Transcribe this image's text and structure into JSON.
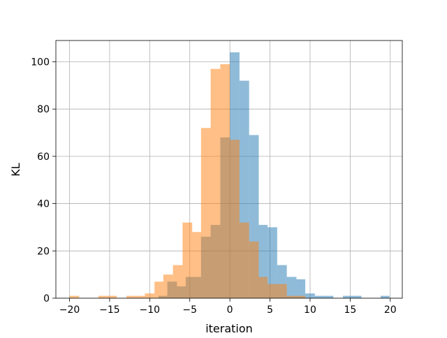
{
  "chart_data": {
    "type": "bar",
    "subtype": "overlapping-histogram",
    "title": "",
    "xlabel": "iteration",
    "ylabel": "KL",
    "xlim": [
      -21.7,
      21.5
    ],
    "ylim": [
      0,
      109
    ],
    "grid": true,
    "xticks": [
      -20,
      -15,
      -10,
      -5,
      0,
      5,
      10,
      15,
      20
    ],
    "xtick_labels": [
      "−20",
      "−15",
      "−10",
      "−5",
      "0",
      "5",
      "10",
      "15",
      "20"
    ],
    "yticks": [
      0,
      20,
      40,
      60,
      80,
      100
    ],
    "ytick_labels": [
      "0",
      "20",
      "40",
      "60",
      "80",
      "100"
    ],
    "series": [
      {
        "color": "#1f77b4",
        "opacity": 0.5,
        "bins": [
          {
            "x0": -10.0,
            "x1": -8.9,
            "count": 0
          },
          {
            "x0": -8.9,
            "x1": -7.8,
            "count": 1
          },
          {
            "x0": -7.8,
            "x1": -6.6,
            "count": 7
          },
          {
            "x0": -6.6,
            "x1": -5.5,
            "count": 5
          },
          {
            "x0": -5.5,
            "x1": -3.6,
            "count": 9
          },
          {
            "x0": -3.6,
            "x1": -2.4,
            "count": 26
          },
          {
            "x0": -2.4,
            "x1": -1.2,
            "count": 31
          },
          {
            "x0": -1.2,
            "x1": 0.0,
            "count": 68
          },
          {
            "x0": 0.0,
            "x1": 1.2,
            "count": 104
          },
          {
            "x0": 1.2,
            "x1": 2.4,
            "count": 92
          },
          {
            "x0": 2.4,
            "x1": 3.6,
            "count": 69
          },
          {
            "x0": 3.6,
            "x1": 4.7,
            "count": 31
          },
          {
            "x0": 4.7,
            "x1": 5.9,
            "count": 30
          },
          {
            "x0": 5.9,
            "x1": 7.1,
            "count": 14
          },
          {
            "x0": 7.1,
            "x1": 8.3,
            "count": 9
          },
          {
            "x0": 8.3,
            "x1": 9.4,
            "count": 8
          },
          {
            "x0": 9.4,
            "x1": 10.6,
            "count": 2
          },
          {
            "x0": 10.6,
            "x1": 12.9,
            "count": 1
          },
          {
            "x0": 12.9,
            "x1": 14.1,
            "count": 0
          },
          {
            "x0": 14.1,
            "x1": 16.4,
            "count": 1
          },
          {
            "x0": 16.4,
            "x1": 18.8,
            "count": 0
          },
          {
            "x0": 18.8,
            "x1": 19.9,
            "count": 1
          }
        ]
      },
      {
        "color": "#ff7f0e",
        "opacity": 0.5,
        "bins": [
          {
            "x0": -20.0,
            "x1": -18.8,
            "count": 1
          },
          {
            "x0": -18.8,
            "x1": -16.4,
            "count": 0
          },
          {
            "x0": -16.4,
            "x1": -14.1,
            "count": 1
          },
          {
            "x0": -14.1,
            "x1": -12.9,
            "count": 0
          },
          {
            "x0": -12.9,
            "x1": -10.6,
            "count": 1
          },
          {
            "x0": -10.6,
            "x1": -9.4,
            "count": 2
          },
          {
            "x0": -9.4,
            "x1": -8.3,
            "count": 7
          },
          {
            "x0": -8.3,
            "x1": -7.1,
            "count": 10
          },
          {
            "x0": -7.1,
            "x1": -5.9,
            "count": 14
          },
          {
            "x0": -5.9,
            "x1": -4.7,
            "count": 32
          },
          {
            "x0": -4.7,
            "x1": -3.6,
            "count": 28
          },
          {
            "x0": -3.6,
            "x1": -2.4,
            "count": 72
          },
          {
            "x0": -2.4,
            "x1": -1.2,
            "count": 97
          },
          {
            "x0": -1.2,
            "x1": 0.0,
            "count": 99
          },
          {
            "x0": 0.0,
            "x1": 1.2,
            "count": 67
          },
          {
            "x0": 1.2,
            "x1": 2.4,
            "count": 32
          },
          {
            "x0": 2.4,
            "x1": 3.6,
            "count": 24
          },
          {
            "x0": 3.6,
            "x1": 4.7,
            "count": 9
          },
          {
            "x0": 4.7,
            "x1": 5.9,
            "count": 6
          },
          {
            "x0": 5.9,
            "x1": 7.1,
            "count": 6
          },
          {
            "x0": 7.1,
            "x1": 9.4,
            "count": 1
          }
        ]
      }
    ]
  }
}
